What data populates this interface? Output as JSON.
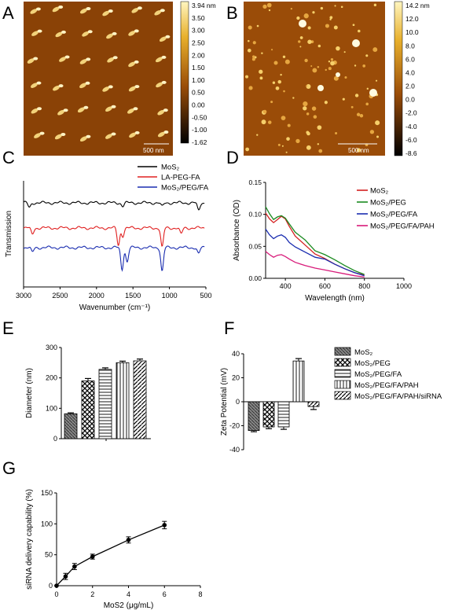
{
  "panels": {
    "A": {
      "label": "A",
      "scalebar": "500 nm",
      "colorbar_ticks": [
        "3.94 nm",
        "3.50",
        "3.00",
        "2.50",
        "2.00",
        "1.50",
        "1.00",
        "0.50",
        "0.00",
        "-0.50",
        "-1.00",
        "-1.62"
      ]
    },
    "B": {
      "label": "B",
      "scalebar": "500 nm",
      "colorbar_ticks": [
        "14.2 nm",
        "12.0",
        "10.0",
        "8.0",
        "6.0",
        "4.0",
        "2.0",
        "0.0",
        "-2.0",
        "-4.0",
        "-6.0",
        "-8.6"
      ]
    },
    "C": {
      "label": "C"
    },
    "D": {
      "label": "D"
    },
    "E": {
      "label": "E"
    },
    "F": {
      "label": "F"
    },
    "G": {
      "label": "G"
    }
  },
  "chart_data": [
    {
      "id": "C",
      "type": "line",
      "xlabel": "Wavenumber (cm⁻¹)",
      "ylabel": "Transmission",
      "xlim": [
        3000,
        500
      ],
      "xticks": [
        "3000",
        "2500",
        "2000",
        "1500",
        "1000",
        "500"
      ],
      "series": [
        {
          "name": "MoS₂",
          "color": "#000000"
        },
        {
          "name": "LA-PEG-FA",
          "color": "#e02020"
        },
        {
          "name": "MoS₂/PEG/FA",
          "color": "#1a2db0"
        }
      ]
    },
    {
      "id": "D",
      "type": "line",
      "xlabel": "Wavelength (nm)",
      "ylabel": "Absorbance (OD)",
      "xlim": [
        300,
        1000
      ],
      "ylim": [
        0,
        0.15
      ],
      "xticks": [
        "400",
        "600",
        "800",
        "1000"
      ],
      "yticks": [
        "0.00",
        "0.05",
        "0.10",
        "0.15"
      ],
      "series": [
        {
          "name": "MoS₂",
          "color": "#d42020",
          "x": [
            300,
            320,
            340,
            360,
            380,
            400,
            420,
            450,
            500,
            550,
            600,
            650,
            700,
            750,
            800
          ],
          "values": [
            0.102,
            0.093,
            0.087,
            0.092,
            0.097,
            0.093,
            0.081,
            0.066,
            0.052,
            0.038,
            0.031,
            0.022,
            0.015,
            0.009,
            0.005
          ]
        },
        {
          "name": "MoS₂/PEG",
          "color": "#1a8a20",
          "x": [
            300,
            320,
            340,
            360,
            380,
            400,
            420,
            450,
            500,
            550,
            600,
            650,
            700,
            750,
            800
          ],
          "values": [
            0.112,
            0.101,
            0.092,
            0.096,
            0.098,
            0.094,
            0.085,
            0.072,
            0.06,
            0.043,
            0.037,
            0.029,
            0.02,
            0.012,
            0.006
          ]
        },
        {
          "name": "MoS₂/PEG/FA",
          "color": "#1a2db0",
          "x": [
            300,
            320,
            340,
            360,
            380,
            400,
            420,
            450,
            500,
            550,
            600,
            650,
            700,
            750,
            800
          ],
          "values": [
            0.077,
            0.068,
            0.062,
            0.066,
            0.068,
            0.064,
            0.056,
            0.049,
            0.041,
            0.033,
            0.03,
            0.022,
            0.015,
            0.009,
            0.004
          ]
        },
        {
          "name": "MoS₂/PEG/FA/PAH",
          "color": "#d81b7a",
          "x": [
            300,
            320,
            340,
            360,
            380,
            400,
            420,
            450,
            500,
            550,
            600,
            650,
            700,
            750,
            800
          ],
          "values": [
            0.042,
            0.037,
            0.033,
            0.036,
            0.037,
            0.034,
            0.03,
            0.025,
            0.02,
            0.016,
            0.013,
            0.01,
            0.007,
            0.004,
            0.002
          ]
        }
      ]
    },
    {
      "id": "E",
      "type": "bar",
      "ylabel": "Diameter (nm)",
      "ylim": [
        0,
        300
      ],
      "yticks": [
        "0",
        "100",
        "200",
        "300"
      ],
      "categories": [
        "MoS₂",
        "MoS₂/PEG",
        "MoS₂/PEG/FA",
        "MoS₂/PEG/FA/PAH",
        "MoS₂/PEG/FA/PAH/siRNA"
      ],
      "values": [
        82,
        190,
        228,
        250,
        256
      ],
      "errors": [
        3,
        8,
        5,
        5,
        6
      ]
    },
    {
      "id": "F",
      "type": "bar",
      "ylabel": "Zeta Potential (mV)",
      "ylim": [
        -40,
        40
      ],
      "yticks": [
        "-40",
        "-20",
        "0",
        "20",
        "40"
      ],
      "categories": [
        "MoS₂",
        "MoS₂/PEG",
        "MoS₂/PEG/FA",
        "MoS₂/PEG/FA/PAH",
        "MoS₂/PEG/FA/PAH/siRNA"
      ],
      "values": [
        -24,
        -21,
        -21,
        34,
        -4
      ],
      "errors": [
        1,
        1.5,
        2,
        2,
        2.5
      ]
    },
    {
      "id": "G",
      "type": "line",
      "xlabel": "MoS2 (μg/mL)",
      "ylabel": "siRNA delivery capability (%)",
      "xlim": [
        0,
        8
      ],
      "ylim": [
        0,
        150
      ],
      "xticks": [
        "0",
        "2",
        "4",
        "6",
        "8"
      ],
      "yticks": [
        "0",
        "50",
        "100",
        "150"
      ],
      "x": [
        0,
        0.5,
        1,
        2,
        4,
        6
      ],
      "values": [
        0,
        15,
        31,
        47,
        74,
        98
      ],
      "errors": [
        0,
        5,
        5,
        4,
        5,
        6
      ]
    }
  ]
}
